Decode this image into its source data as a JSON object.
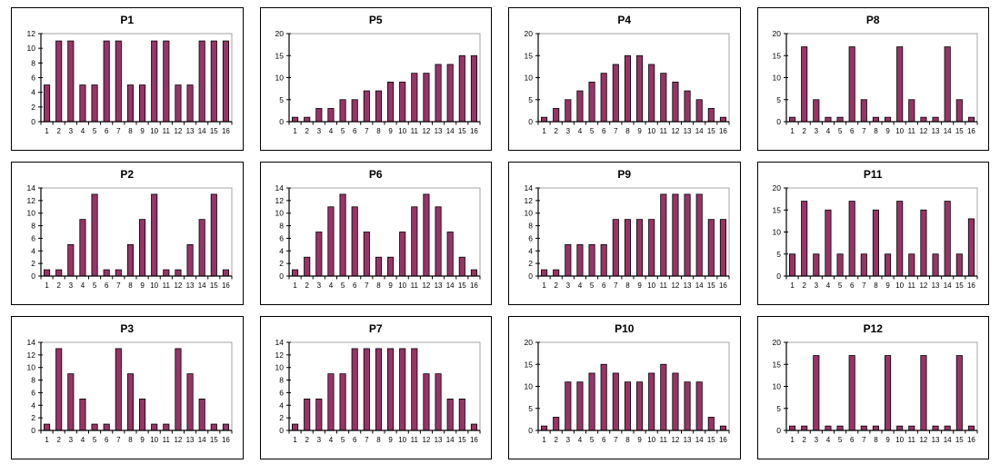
{
  "page": {
    "background": "#ffffff"
  },
  "colors": {
    "bar_fill": "#993366",
    "bar_stroke": "#000000",
    "plot_border": "#a6a6a6",
    "axis": "#000000",
    "panel_border": "#000000",
    "text": "#000000"
  },
  "grid": {
    "rows": 3,
    "cols": 4,
    "order": "row-major"
  },
  "chart_data": [
    {
      "type": "bar",
      "title": "P1",
      "categories": [
        "1",
        "2",
        "3",
        "4",
        "5",
        "6",
        "7",
        "8",
        "9",
        "10",
        "11",
        "12",
        "13",
        "14",
        "15",
        "16"
      ],
      "values": [
        5,
        11,
        11,
        5,
        5,
        11,
        11,
        5,
        5,
        11,
        11,
        5,
        5,
        11,
        11,
        11
      ],
      "xlabel": "",
      "ylabel": "",
      "ylim": [
        0,
        12
      ],
      "ytick_step": 2,
      "grid_lines": "top-border-only",
      "legend": "none"
    },
    {
      "type": "bar",
      "title": "P5",
      "categories": [
        "1",
        "2",
        "3",
        "4",
        "5",
        "6",
        "7",
        "8",
        "9",
        "10",
        "11",
        "12",
        "13",
        "14",
        "15",
        "16"
      ],
      "values": [
        1,
        1,
        3,
        3,
        5,
        5,
        7,
        7,
        9,
        9,
        11,
        11,
        13,
        13,
        15,
        15
      ],
      "xlabel": "",
      "ylabel": "",
      "ylim": [
        0,
        20
      ],
      "ytick_step": 5,
      "grid_lines": "top-border-only",
      "legend": "none"
    },
    {
      "type": "bar",
      "title": "P4",
      "categories": [
        "1",
        "2",
        "3",
        "4",
        "5",
        "6",
        "7",
        "8",
        "9",
        "10",
        "11",
        "12",
        "13",
        "14",
        "15",
        "16"
      ],
      "values": [
        1,
        3,
        5,
        7,
        9,
        11,
        13,
        15,
        15,
        13,
        11,
        9,
        7,
        5,
        3,
        1
      ],
      "xlabel": "",
      "ylabel": "",
      "ylim": [
        0,
        20
      ],
      "ytick_step": 5,
      "grid_lines": "top-border-only",
      "legend": "none"
    },
    {
      "type": "bar",
      "title": "P8",
      "categories": [
        "1",
        "2",
        "3",
        "4",
        "5",
        "6",
        "7",
        "8",
        "9",
        "10",
        "11",
        "12",
        "13",
        "14",
        "15",
        "16"
      ],
      "values": [
        1,
        17,
        5,
        1,
        1,
        17,
        5,
        1,
        1,
        17,
        5,
        1,
        1,
        17,
        5,
        1
      ],
      "xlabel": "",
      "ylabel": "",
      "ylim": [
        0,
        20
      ],
      "ytick_step": 5,
      "grid_lines": "top-border-only",
      "legend": "none"
    },
    {
      "type": "bar",
      "title": "P2",
      "categories": [
        "1",
        "2",
        "3",
        "4",
        "5",
        "6",
        "7",
        "8",
        "9",
        "10",
        "11",
        "12",
        "13",
        "14",
        "15",
        "16"
      ],
      "values": [
        1,
        1,
        5,
        9,
        13,
        1,
        1,
        5,
        9,
        13,
        1,
        1,
        5,
        9,
        13,
        1
      ],
      "xlabel": "",
      "ylabel": "",
      "ylim": [
        0,
        14
      ],
      "ytick_step": 2,
      "grid_lines": "top-border-only",
      "legend": "none"
    },
    {
      "type": "bar",
      "title": "P6",
      "categories": [
        "1",
        "2",
        "3",
        "4",
        "5",
        "6",
        "7",
        "8",
        "9",
        "10",
        "11",
        "12",
        "13",
        "14",
        "15",
        "16"
      ],
      "values": [
        1,
        3,
        7,
        11,
        13,
        11,
        7,
        3,
        3,
        7,
        11,
        13,
        11,
        7,
        3,
        1
      ],
      "xlabel": "",
      "ylabel": "",
      "ylim": [
        0,
        14
      ],
      "ytick_step": 2,
      "grid_lines": "top-border-only",
      "legend": "none"
    },
    {
      "type": "bar",
      "title": "P9",
      "categories": [
        "1",
        "2",
        "3",
        "4",
        "5",
        "6",
        "7",
        "8",
        "9",
        "10",
        "11",
        "12",
        "13",
        "14",
        "15",
        "16"
      ],
      "values": [
        1,
        1,
        5,
        5,
        5,
        5,
        9,
        9,
        9,
        9,
        13,
        13,
        13,
        13,
        9,
        9
      ],
      "xlabel": "",
      "ylabel": "",
      "ylim": [
        0,
        14
      ],
      "ytick_step": 2,
      "grid_lines": "top-border-only",
      "legend": "none"
    },
    {
      "type": "bar",
      "title": "P11",
      "categories": [
        "1",
        "2",
        "3",
        "4",
        "5",
        "6",
        "7",
        "8",
        "9",
        "10",
        "11",
        "12",
        "13",
        "14",
        "15",
        "16"
      ],
      "values": [
        5,
        17,
        5,
        15,
        5,
        17,
        5,
        15,
        5,
        17,
        5,
        15,
        5,
        17,
        5,
        13
      ],
      "xlabel": "",
      "ylabel": "",
      "ylim": [
        0,
        20
      ],
      "ytick_step": 5,
      "grid_lines": "top-border-only",
      "legend": "none"
    },
    {
      "type": "bar",
      "title": "P3",
      "categories": [
        "1",
        "2",
        "3",
        "4",
        "5",
        "6",
        "7",
        "8",
        "9",
        "10",
        "11",
        "12",
        "13",
        "14",
        "15",
        "16"
      ],
      "values": [
        1,
        13,
        9,
        5,
        1,
        1,
        13,
        9,
        5,
        1,
        1,
        13,
        9,
        5,
        1,
        1
      ],
      "xlabel": "",
      "ylabel": "",
      "ylim": [
        0,
        14
      ],
      "ytick_step": 2,
      "grid_lines": "top-border-only",
      "legend": "none"
    },
    {
      "type": "bar",
      "title": "P7",
      "categories": [
        "1",
        "2",
        "3",
        "4",
        "5",
        "6",
        "7",
        "8",
        "9",
        "10",
        "11",
        "12",
        "13",
        "14",
        "15",
        "16"
      ],
      "values": [
        1,
        5,
        5,
        9,
        9,
        13,
        13,
        13,
        13,
        13,
        13,
        9,
        9,
        5,
        5,
        1
      ],
      "xlabel": "",
      "ylabel": "",
      "ylim": [
        0,
        14
      ],
      "ytick_step": 2,
      "grid_lines": "top-border-only",
      "legend": "none"
    },
    {
      "type": "bar",
      "title": "P10",
      "categories": [
        "1",
        "2",
        "3",
        "4",
        "5",
        "6",
        "7",
        "8",
        "9",
        "10",
        "11",
        "12",
        "13",
        "14",
        "15",
        "16"
      ],
      "values": [
        1,
        3,
        11,
        11,
        13,
        15,
        13,
        11,
        11,
        13,
        15,
        13,
        11,
        11,
        3,
        1
      ],
      "xlabel": "",
      "ylabel": "",
      "ylim": [
        0,
        20
      ],
      "ytick_step": 5,
      "grid_lines": "top-border-only",
      "legend": "none"
    },
    {
      "type": "bar",
      "title": "P12",
      "categories": [
        "1",
        "2",
        "3",
        "4",
        "5",
        "6",
        "7",
        "8",
        "9",
        "10",
        "11",
        "12",
        "13",
        "14",
        "15",
        "16"
      ],
      "values": [
        1,
        1,
        17,
        1,
        1,
        17,
        1,
        1,
        17,
        1,
        1,
        17,
        1,
        1,
        17,
        1
      ],
      "xlabel": "",
      "ylabel": "",
      "ylim": [
        0,
        20
      ],
      "ytick_step": 5,
      "grid_lines": "top-border-only",
      "legend": "none"
    }
  ]
}
